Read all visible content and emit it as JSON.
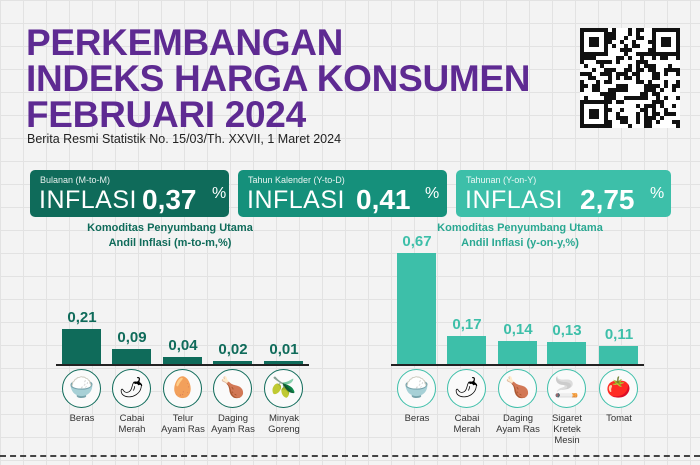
{
  "header": {
    "title_lines": [
      "PERKEMBANGAN",
      "INDEKS HARGA KONSUMEN",
      "FEBRUARI 2024"
    ],
    "subtitle": "Berita Resmi Statistik No. 15/03/Th. XXVII, 1 Maret 2024"
  },
  "cards": [
    {
      "label": "Bulanan (M-to-M)",
      "word": "INFLASI",
      "value": "0,37",
      "unit": "%",
      "color": "#0f6b5a"
    },
    {
      "label": "Tahun Kalender (Y-to-D)",
      "word": "INFLASI",
      "value": "0,41",
      "unit": "%",
      "color": "#15907b"
    },
    {
      "label": "Tahunan (Y-on-Y)",
      "word": "INFLASI",
      "value": "2,75",
      "unit": "%",
      "color": "#3dbfa9"
    }
  ],
  "chart_data": [
    {
      "type": "bar",
      "title": "Komoditas Penyumbang Utama",
      "subtitle": "Andil Inflasi (m-to-m,%)",
      "categories": [
        "Beras",
        "Cabai Merah",
        "Telur Ayam Ras",
        "Daging Ayam Ras",
        "Minyak Goreng"
      ],
      "values": [
        0.21,
        0.09,
        0.04,
        0.02,
        0.01
      ],
      "labels": [
        "0,21",
        "0,09",
        "0,04",
        "0,02",
        "0,01"
      ],
      "icons": [
        "rice-bowl-icon",
        "chili-icon",
        "egg-icon",
        "chicken-icon",
        "cooking-oil-icon"
      ],
      "color": "#0f6b5a"
    },
    {
      "type": "bar",
      "title": "Komoditas Penyumbang Utama",
      "subtitle": "Andil Inflasi (y-on-y,%)",
      "categories": [
        "Beras",
        "Cabai Merah",
        "Daging Ayam Ras",
        "Sigaret Kretek Mesin",
        "Tomat"
      ],
      "values": [
        0.67,
        0.17,
        0.14,
        0.13,
        0.11
      ],
      "labels": [
        "0,67",
        "0,17",
        "0,14",
        "0,13",
        "0,11"
      ],
      "icons": [
        "rice-bowl-icon",
        "chili-icon",
        "chicken-icon",
        "cigarette-icon",
        "tomato-icon"
      ],
      "color": "#3dbfa9"
    }
  ]
}
